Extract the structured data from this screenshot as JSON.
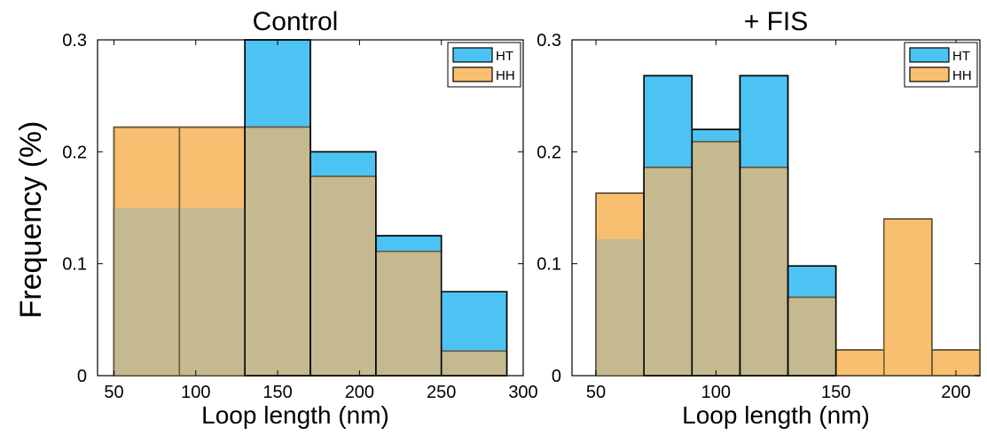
{
  "ylabel": "Frequency (%)",
  "colors": {
    "HT": "#4dc3f3",
    "HH": "#f9bf71",
    "overlap": "#c4b98f"
  },
  "chart_data": [
    {
      "type": "bar",
      "title": "Control",
      "xlabel": "Loop length (nm)",
      "xlim": [
        40,
        300
      ],
      "ylim": [
        0,
        0.3
      ],
      "xticks": [
        "50",
        "100",
        "150",
        "200",
        "250",
        "300"
      ],
      "yticks": [
        "0",
        "0.1",
        "0.2",
        "0.3"
      ],
      "bin_edges": [
        50,
        90,
        130,
        170,
        210,
        250,
        290
      ],
      "legend": [
        "HT",
        "HH"
      ],
      "legend_position": "top-right",
      "series": [
        {
          "name": "HT",
          "values": [
            0.15,
            0.15,
            0.3,
            0.2,
            0.125,
            0.075
          ]
        },
        {
          "name": "HH",
          "values": [
            0.222,
            0.222,
            0.222,
            0.178,
            0.111,
            0.022
          ]
        }
      ]
    },
    {
      "type": "bar",
      "title": "+ FIS",
      "xlabel": "Loop length (nm)",
      "xlim": [
        40,
        210
      ],
      "ylim": [
        0,
        0.3
      ],
      "xticks": [
        "50",
        "100",
        "150",
        "200"
      ],
      "yticks": [
        "0",
        "0.1",
        "0.2",
        "0.3"
      ],
      "bin_edges": [
        50,
        70,
        90,
        110,
        130,
        150,
        170,
        190,
        210
      ],
      "legend": [
        "HT",
        "HH"
      ],
      "legend_position": "top-right",
      "series": [
        {
          "name": "HT",
          "values": [
            0.122,
            0.268,
            0.22,
            0.268,
            0.098,
            0,
            0,
            0
          ]
        },
        {
          "name": "HH",
          "values": [
            0.163,
            0.186,
            0.209,
            0.186,
            0.07,
            0.023,
            0.14,
            0.023
          ]
        }
      ]
    }
  ]
}
